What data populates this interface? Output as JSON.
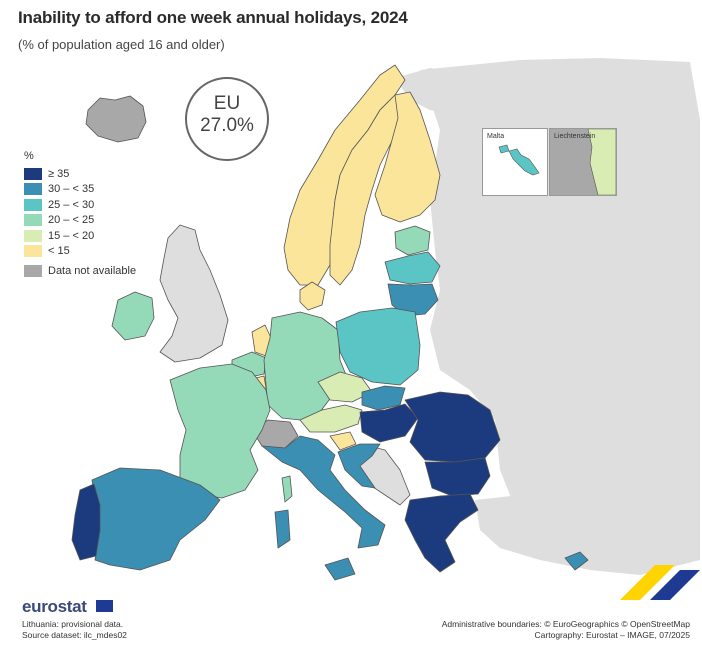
{
  "title": "Inability to afford one week annual holidays, 2024",
  "subtitle": "(% of population aged 16 and older)",
  "eu_badge": {
    "label": "EU",
    "value": "27.0%"
  },
  "legend": {
    "title": "%",
    "classes": [
      {
        "label": "≥ 35",
        "color": "#1c3a7e"
      },
      {
        "label": "30 – < 35",
        "color": "#3a8fb3"
      },
      {
        "label": "25 – < 30",
        "color": "#5bc4c4"
      },
      {
        "label": "20 – < 25",
        "color": "#94d9b8"
      },
      {
        "label": "15 – < 20",
        "color": "#d9ecb3"
      },
      {
        "label": "< 15",
        "color": "#fbe59a"
      }
    ],
    "not_available": {
      "label": "Data not available",
      "color": "#a8a8a8"
    }
  },
  "insets": {
    "malta": "Malta",
    "liechtenstein": "Liechtenstein"
  },
  "colors": {
    "non_eu": "#dedede",
    "sea": "#ffffff",
    "border": "#555555"
  },
  "footer": {
    "logo": "eurostat",
    "note1": "Lithuania: provisional data.",
    "note2": "Source dataset: ilc_mdes02",
    "credit1": "Administrative boundaries: © EuroGeographics © OpenStreetMap",
    "credit2": "Cartography: Eurostat – IMAGE, 07/2025"
  }
}
